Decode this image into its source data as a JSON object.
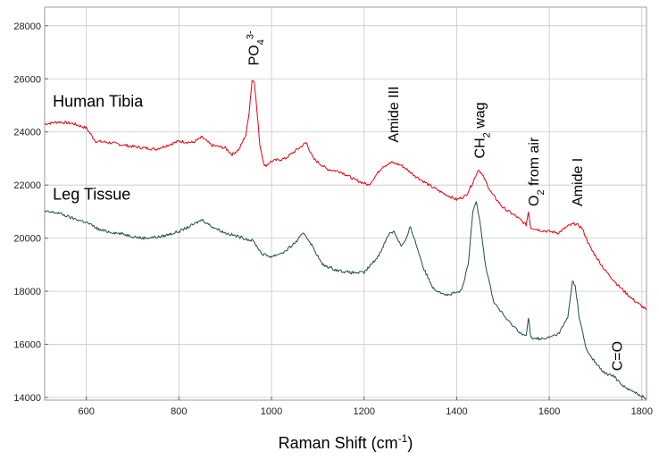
{
  "chart_data": {
    "type": "line",
    "xlabel": "Raman Shift (cm",
    "xlabel_sup": "-1",
    "xlabel_end": ")",
    "xlim": [
      510,
      1810
    ],
    "ylim": [
      13900,
      28700
    ],
    "x_ticks": [
      600,
      800,
      1000,
      1200,
      1400,
      1600,
      1800
    ],
    "y_ticks": [
      14000,
      16000,
      18000,
      20000,
      22000,
      24000,
      26000,
      28000
    ],
    "grid": true,
    "series": [
      {
        "name": "Human Tibia",
        "color": "#e8000f",
        "points": [
          [
            510,
            24300
          ],
          [
            540,
            24380
          ],
          [
            570,
            24320
          ],
          [
            600,
            24150
          ],
          [
            620,
            23650
          ],
          [
            650,
            23600
          ],
          [
            700,
            23450
          ],
          [
            750,
            23350
          ],
          [
            800,
            23650
          ],
          [
            830,
            23600
          ],
          [
            850,
            23800
          ],
          [
            870,
            23500
          ],
          [
            900,
            23400
          ],
          [
            915,
            23150
          ],
          [
            930,
            23350
          ],
          [
            945,
            23900
          ],
          [
            952,
            24800
          ],
          [
            958,
            25950
          ],
          [
            963,
            25900
          ],
          [
            968,
            24900
          ],
          [
            975,
            23500
          ],
          [
            985,
            22700
          ],
          [
            1000,
            22900
          ],
          [
            1030,
            23000
          ],
          [
            1060,
            23400
          ],
          [
            1075,
            23600
          ],
          [
            1090,
            23000
          ],
          [
            1120,
            22600
          ],
          [
            1150,
            22500
          ],
          [
            1180,
            22200
          ],
          [
            1210,
            22000
          ],
          [
            1240,
            22700
          ],
          [
            1260,
            22850
          ],
          [
            1280,
            22750
          ],
          [
            1310,
            22350
          ],
          [
            1340,
            22000
          ],
          [
            1370,
            21700
          ],
          [
            1400,
            21450
          ],
          [
            1420,
            21600
          ],
          [
            1435,
            22100
          ],
          [
            1447,
            22600
          ],
          [
            1458,
            22300
          ],
          [
            1475,
            21700
          ],
          [
            1500,
            21150
          ],
          [
            1530,
            20800
          ],
          [
            1550,
            20500
          ],
          [
            1555,
            21000
          ],
          [
            1560,
            20400
          ],
          [
            1580,
            20300
          ],
          [
            1600,
            20250
          ],
          [
            1620,
            20200
          ],
          [
            1640,
            20450
          ],
          [
            1655,
            20550
          ],
          [
            1670,
            20400
          ],
          [
            1690,
            19600
          ],
          [
            1720,
            18800
          ],
          [
            1750,
            18200
          ],
          [
            1780,
            17700
          ],
          [
            1810,
            17300
          ]
        ]
      },
      {
        "name": "Leg Tissue",
        "color": "#1f4d4d",
        "points": [
          [
            510,
            21000
          ],
          [
            540,
            20950
          ],
          [
            570,
            20750
          ],
          [
            600,
            20600
          ],
          [
            630,
            20300
          ],
          [
            680,
            20150
          ],
          [
            720,
            20000
          ],
          [
            760,
            20050
          ],
          [
            800,
            20250
          ],
          [
            830,
            20500
          ],
          [
            850,
            20700
          ],
          [
            870,
            20450
          ],
          [
            900,
            20200
          ],
          [
            940,
            20000
          ],
          [
            960,
            19900
          ],
          [
            980,
            19400
          ],
          [
            1000,
            19300
          ],
          [
            1030,
            19500
          ],
          [
            1055,
            19900
          ],
          [
            1070,
            20200
          ],
          [
            1085,
            19800
          ],
          [
            1110,
            19000
          ],
          [
            1140,
            18800
          ],
          [
            1170,
            18700
          ],
          [
            1200,
            18700
          ],
          [
            1230,
            19300
          ],
          [
            1255,
            20200
          ],
          [
            1265,
            20250
          ],
          [
            1280,
            19700
          ],
          [
            1290,
            19900
          ],
          [
            1300,
            20450
          ],
          [
            1310,
            19900
          ],
          [
            1330,
            18800
          ],
          [
            1350,
            18100
          ],
          [
            1380,
            17850
          ],
          [
            1410,
            18000
          ],
          [
            1425,
            19000
          ],
          [
            1435,
            21000
          ],
          [
            1442,
            21400
          ],
          [
            1450,
            20700
          ],
          [
            1462,
            19000
          ],
          [
            1480,
            17600
          ],
          [
            1510,
            16900
          ],
          [
            1540,
            16400
          ],
          [
            1550,
            16300
          ],
          [
            1555,
            17000
          ],
          [
            1560,
            16250
          ],
          [
            1590,
            16200
          ],
          [
            1620,
            16400
          ],
          [
            1640,
            17000
          ],
          [
            1650,
            18400
          ],
          [
            1656,
            18200
          ],
          [
            1665,
            17000
          ],
          [
            1680,
            15800
          ],
          [
            1700,
            15300
          ],
          [
            1720,
            14900
          ],
          [
            1740,
            14800
          ],
          [
            1750,
            14600
          ],
          [
            1770,
            14300
          ],
          [
            1790,
            14150
          ],
          [
            1810,
            13950
          ]
        ]
      }
    ],
    "series_labels": [
      {
        "text": "Human Tibia",
        "x": 520,
        "y": 24950
      },
      {
        "text": "Leg Tissue",
        "x": 520,
        "y": 21450
      }
    ],
    "annotations": [
      {
        "text": "PO",
        "sub": "4",
        "sup": "3-",
        "x": 960,
        "y": 26500,
        "rotate": -90
      },
      {
        "text": "Amide III",
        "x": 1262,
        "y": 23600,
        "rotate": -90
      },
      {
        "text": "CH",
        "sub": "2",
        "tail": " wag",
        "x": 1448,
        "y": 23000,
        "rotate": -90
      },
      {
        "text": "O",
        "sub": "2",
        "tail": " from air",
        "x": 1565,
        "y": 21200,
        "rotate": -90
      },
      {
        "text": "Amide I",
        "x": 1660,
        "y": 21200,
        "rotate": -90
      },
      {
        "text": "C=O",
        "x": 1745,
        "y": 15000,
        "rotate": -90
      }
    ]
  }
}
